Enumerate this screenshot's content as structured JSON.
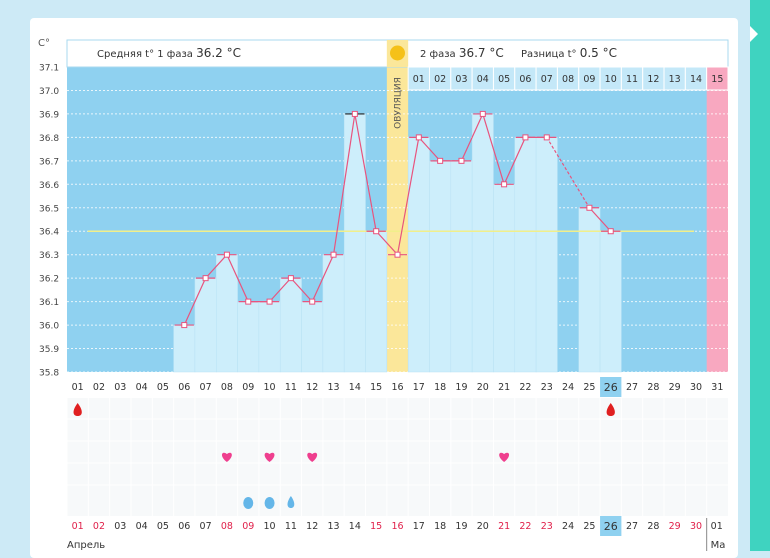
{
  "chart_data": {
    "type": "line",
    "y_unit": "C°",
    "ylim": [
      35.8,
      37.1
    ],
    "y_ticks": [
      "37.1",
      "37.0",
      "36.9",
      "36.8",
      "36.7",
      "36.6",
      "36.5",
      "36.4",
      "36.3",
      "36.2",
      "36.1",
      "36.0",
      "35.9",
      "35.8"
    ],
    "phase1": {
      "label": "Средняя t° 1 фаза",
      "value": "36.2 °C"
    },
    "phase2": {
      "label": "2 фаза",
      "value": "36.7 °C"
    },
    "difference": {
      "label": "Разница t°",
      "value": "0.5 °C"
    },
    "ovulation": {
      "label": "ОВУЛЯЦИЯ",
      "day": 16
    },
    "cover_line": 36.4,
    "days": [
      "01",
      "02",
      "03",
      "04",
      "05",
      "06",
      "07",
      "08",
      "09",
      "10",
      "11",
      "12",
      "13",
      "14",
      "15",
      "16",
      "17",
      "18",
      "19",
      "20",
      "21",
      "22",
      "23",
      "24",
      "25",
      "26",
      "27",
      "28",
      "29",
      "30",
      "31"
    ],
    "cycle_days": [
      "01",
      "02",
      "03",
      "04",
      "05",
      "06",
      "07",
      "08",
      "09",
      "10",
      "11",
      "12",
      "13",
      "14",
      "15"
    ],
    "series": [
      {
        "values": [
          null,
          null,
          null,
          null,
          null,
          36.0,
          36.2,
          36.3,
          36.1,
          36.1,
          36.2,
          36.1,
          36.3,
          36.9,
          36.4,
          36.3,
          36.8,
          36.7,
          36.7,
          36.9,
          36.6,
          36.8,
          36.8,
          null,
          36.5,
          36.4,
          null,
          null,
          null,
          null,
          null
        ]
      }
    ],
    "bottom_days": [
      "01",
      "02",
      "03",
      "04",
      "05",
      "06",
      "07",
      "08",
      "09",
      "10",
      "11",
      "12",
      "13",
      "14",
      "15",
      "16",
      "17",
      "18",
      "19",
      "20",
      "21",
      "22",
      "23",
      "24",
      "25",
      "26",
      "27",
      "28",
      "29",
      "30"
    ],
    "red_days": [
      "01",
      "02",
      "08",
      "09",
      "15",
      "16",
      "21",
      "22",
      "23",
      "29",
      "30"
    ],
    "highlight_day": "26",
    "months": [
      "Апрель",
      "Ma"
    ],
    "next_month_day": "01",
    "markers": {
      "menstruation_days": [
        "01",
        "26"
      ],
      "heart_days": [
        "08",
        "10",
        "12",
        "21"
      ],
      "discharge_days": [
        "09",
        "10",
        "11"
      ]
    }
  }
}
